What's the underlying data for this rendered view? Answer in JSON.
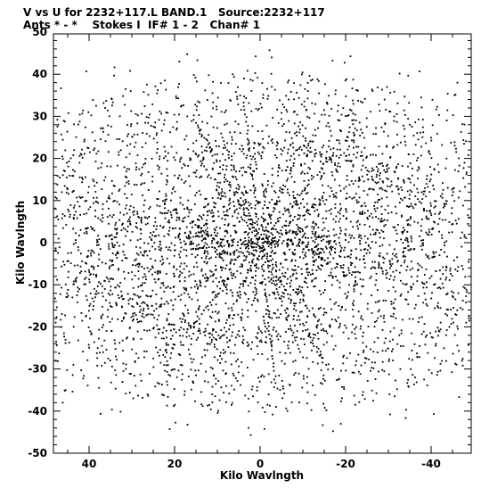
{
  "chart_data": {
    "type": "scatter",
    "title": "V vs U for 2232+117.L BAND.1   Source:2232+117",
    "subtitle": "Ants * - *    Stokes I  IF# 1 - 2   Chan# 1",
    "xlabel": "Kilo Wavlngth",
    "ylabel": "Kilo Wavlngth",
    "xlim": [
      50,
      -52
    ],
    "ylim": [
      -52,
      52
    ],
    "x_ticks": [
      40,
      20,
      0,
      -20,
      -40
    ],
    "x_tick_labels": [
      "40",
      "20",
      "0",
      "-20",
      "-40"
    ],
    "y_ticks": [
      50,
      40,
      30,
      20,
      10,
      0,
      -10,
      -20,
      -30,
      -40,
      -50
    ],
    "y_tick_labels": [
      "50",
      "40",
      "30",
      "20",
      "10",
      "0",
      "-10",
      "-20",
      "-30",
      "-40",
      "-50"
    ],
    "grid": false,
    "marker_color": "#000000",
    "coverage": {
      "description_values": {
        "max_u": 48,
        "max_v": 49
      }
    }
  }
}
